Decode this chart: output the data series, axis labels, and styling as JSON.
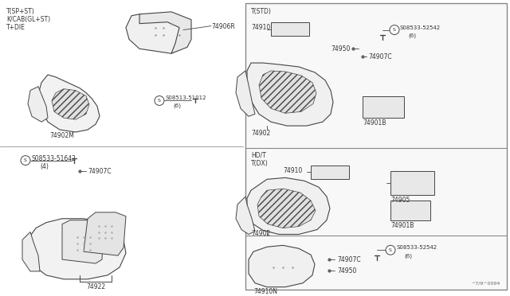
{
  "bg_color": "#ffffff",
  "panel_bg": "#f8f8f8",
  "lc": "#444444",
  "tc": "#333333",
  "fs": 5.5,
  "watermark": "^7/9^0094",
  "top_left_labels": [
    "T(SP+ST)",
    "K/CAB(GL+ST)",
    "T+DIE"
  ]
}
